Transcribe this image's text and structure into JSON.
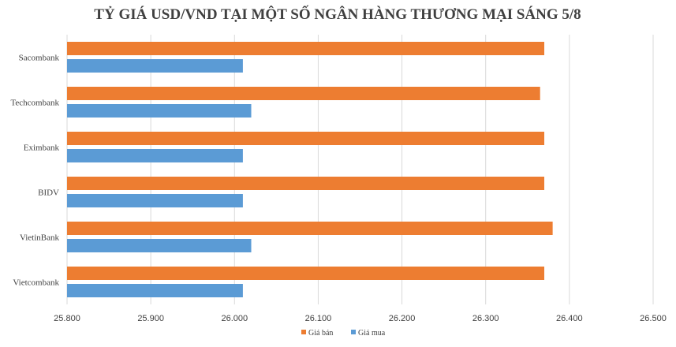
{
  "chart_data": {
    "type": "bar",
    "orientation": "horizontal",
    "title": "TỶ GIÁ USD/VND TẠI MỘT SỐ NGÂN HÀNG THƯƠNG MẠI SÁNG 5/8",
    "categories": [
      "Sacombank",
      "Techcombank",
      "Eximbank",
      "BIDV",
      "VietinBank",
      "Vietcombank"
    ],
    "series": [
      {
        "name": "Giá bán",
        "color": "#ed7d31",
        "values": [
          26370,
          26365,
          26370,
          26370,
          26380,
          26370
        ]
      },
      {
        "name": "Giá mua",
        "color": "#5b9bd5",
        "values": [
          26010,
          26020,
          26010,
          26010,
          26020,
          26010
        ]
      }
    ],
    "xlim": [
      25800,
      26500
    ],
    "xticks": [
      25800,
      25900,
      26000,
      26100,
      26200,
      26300,
      26400,
      26500
    ],
    "xtick_labels": [
      "25.800",
      "25.900",
      "26.000",
      "26.100",
      "26.200",
      "26.300",
      "26.400",
      "26.500"
    ],
    "grid": true,
    "legend_position": "bottom",
    "legend_order": [
      "Giá bán",
      "Giá mua"
    ]
  }
}
